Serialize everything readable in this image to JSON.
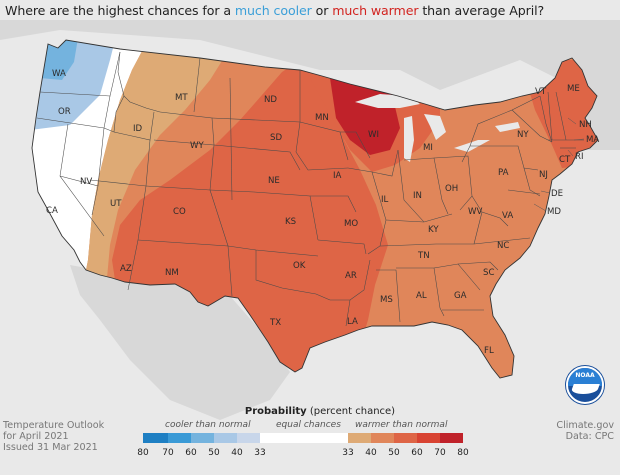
{
  "title": {
    "prefix": "Where are the highest chances for a ",
    "cool_phrase": "much cooler",
    "connector": " or ",
    "warm_phrase": "much warmer",
    "suffix": " than average April?"
  },
  "footer": {
    "left_line1": "Temperature Outlook",
    "left_line2": "for April 2021",
    "left_line3": "Issued 31 Mar 2021",
    "right_line1": "Climate.gov",
    "right_line2": "Data: CPC",
    "logo_text": "NOAA"
  },
  "legend": {
    "title_bold": "Probability",
    "title_rest": " (percent chance)",
    "cooler_label": "cooler than normal",
    "equal_label": "equal chances",
    "warmer_label": "warmer than normal",
    "cool_ticks": [
      "80",
      "70",
      "60",
      "50",
      "40",
      "33"
    ],
    "warm_ticks": [
      "33",
      "40",
      "50",
      "60",
      "70",
      "80"
    ],
    "cool_colors": [
      "#1e7fc3",
      "#3a9ad6",
      "#74b3de",
      "#a9c8e6",
      "#c8d6ea"
    ],
    "equal_color": "#ffffff",
    "warm_colors": [
      "#deaa75",
      "#e0865a",
      "#de6546",
      "#d84332",
      "#c0222a"
    ]
  },
  "map": {
    "background_color": "#e9e9e9",
    "land_outside_color": "#d5d5d5",
    "states": [
      "WA",
      "OR",
      "CA",
      "NV",
      "ID",
      "MT",
      "WY",
      "UT",
      "AZ",
      "CO",
      "NM",
      "ND",
      "SD",
      "NE",
      "KS",
      "OK",
      "TX",
      "MN",
      "IA",
      "MO",
      "AR",
      "LA",
      "WI",
      "IL",
      "MI",
      "IN",
      "OH",
      "KY",
      "TN",
      "MS",
      "AL",
      "GA",
      "FL",
      "SC",
      "NC",
      "VA",
      "WV",
      "PA",
      "NY",
      "VT",
      "NH",
      "ME",
      "MA",
      "CT",
      "RI",
      "NJ",
      "DE",
      "MD"
    ]
  }
}
